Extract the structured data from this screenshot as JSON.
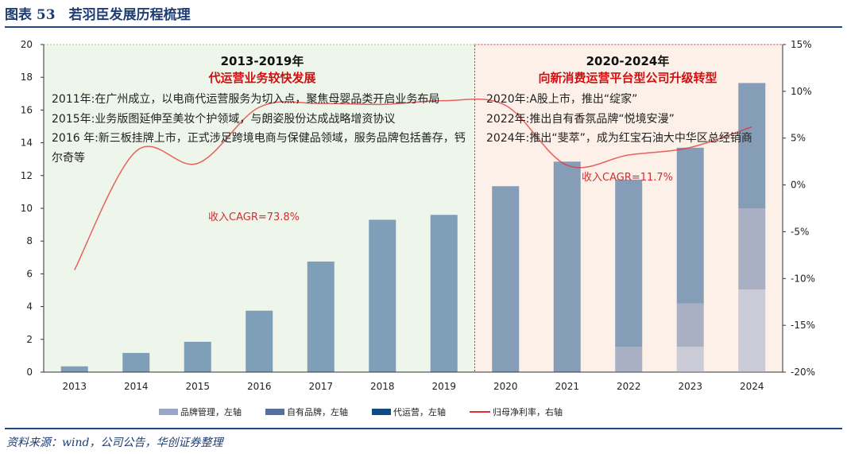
{
  "header": {
    "title": "图表 53　若羽臣发展历程梳理"
  },
  "source": "资料来源：wind，公司公告，华创证券整理",
  "phases": [
    {
      "years": "2013-2019年",
      "subtitle": "代运营业务较快发展",
      "cagr": "收入CAGR=73.8%",
      "notes": [
        "2011年:在广州成立，以电商代运营服务为切入点，聚焦母婴品类开启业务布局",
        "2015年:业务版图延伸至美妆个护领域，与朗姿股份达成战略增资协议",
        "2016 年:新三板挂牌上市，正式涉足跨境电商与保健品领域，服务品牌包括善存，钙尔奇等"
      ],
      "bg": "#eef5ea",
      "border": "#9bc97a"
    },
    {
      "years": "2020-2024年",
      "subtitle": "向新消费运营平台型公司升级转型",
      "cagr": "收入CAGR=11.7%",
      "notes": [
        "2020年:A股上市，推出“绽家”",
        "2022年:推出自有香氛品牌“悦境安漫”",
        "2024年:推出“斐萃”，成为红宝石油大中华区总经销商"
      ],
      "bg": "#fcf0e8",
      "border": "#c0392b"
    }
  ],
  "chart_data": {
    "type": "bar+line",
    "categories": [
      "2013",
      "2014",
      "2015",
      "2016",
      "2017",
      "2018",
      "2019",
      "2020",
      "2021",
      "2022",
      "2023",
      "2024"
    ],
    "series": [
      {
        "name": "品牌管理，左轴",
        "type": "bar",
        "color": "#9aa6c8",
        "values": [
          0,
          0,
          0,
          0,
          0,
          0,
          0,
          0,
          0,
          0,
          1.55,
          5.05
        ]
      },
      {
        "name": "自有品牌，左轴",
        "type": "bar",
        "color": "#5570a0",
        "values": [
          0,
          0,
          0,
          0,
          0,
          0,
          0,
          0,
          0,
          1.55,
          2.65,
          4.95
        ]
      },
      {
        "name": "代运营，左轴",
        "type": "bar",
        "color": "#0f4a85",
        "values": [
          0.35,
          1.17,
          1.85,
          3.75,
          6.75,
          9.3,
          9.6,
          11.35,
          12.85,
          10.2,
          9.5,
          7.65
        ]
      },
      {
        "name": "归母净利率，右轴",
        "type": "line",
        "color": "#e03030",
        "values": [
          -9.1,
          3.6,
          2.3,
          8.3,
          8.7,
          8.6,
          9.0,
          8.5,
          2.1,
          3.2,
          4.0,
          6.2
        ]
      }
    ],
    "y_left": {
      "min": 0,
      "max": 20,
      "ticks": [
        "0",
        "2",
        "4",
        "6",
        "8",
        "10",
        "12",
        "14",
        "16",
        "18",
        "20"
      ]
    },
    "y_right": {
      "min": -20,
      "max": 15,
      "ticks": [
        "-20%",
        "-15%",
        "-10%",
        "-5%",
        "0%",
        "5%",
        "10%",
        "15%"
      ]
    },
    "legend": "bottom"
  }
}
